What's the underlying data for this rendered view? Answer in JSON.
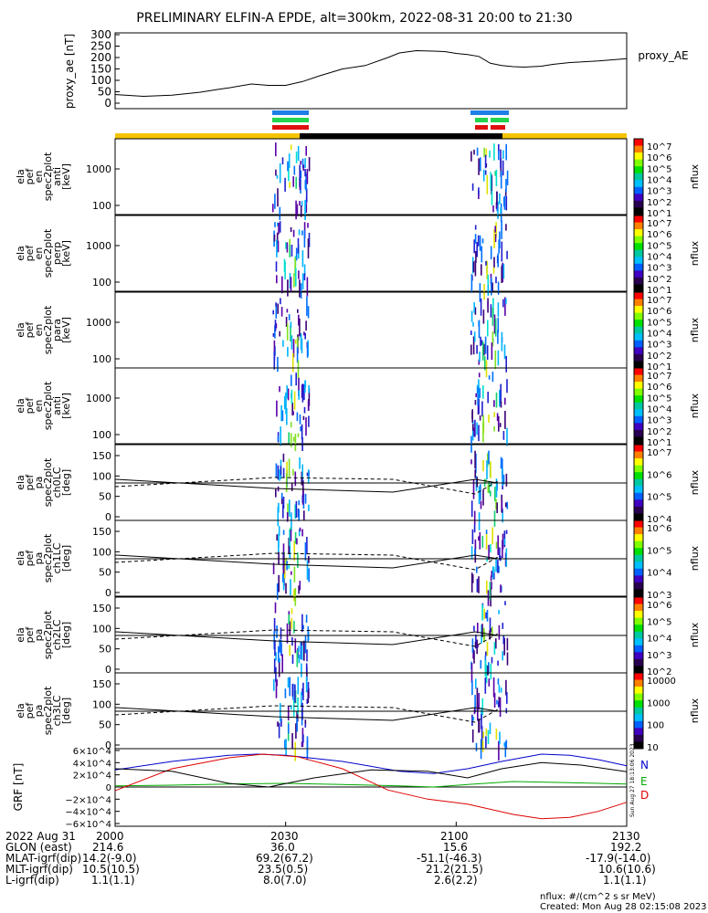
{
  "title": "PRELIMINARY ELFIN-A EPDE, alt=300km, 2022-08-31 20:00 to 21:30",
  "colors": {
    "sci_zone": "#1e7fe6",
    "sci_zone2": "#22d44e",
    "sci_zone3": "#e01010",
    "sunlight": "#f5c400",
    "eclipse": "#000000",
    "grf_n": "#0000cc",
    "grf_e": "#00aa00",
    "grf_d": "#dd0000"
  },
  "chart_data": [
    {
      "type": "line",
      "name": "proxy_ae",
      "ylabel": "proxy_ae [nT]",
      "legend": "proxy_AE",
      "ylim": [
        0,
        300
      ],
      "yticks": [
        "300",
        "250",
        "200",
        "150",
        "100",
        "50",
        "0"
      ],
      "x_minutes": [
        0,
        5,
        10,
        15,
        18,
        20,
        24,
        27,
        30,
        33,
        36,
        40,
        44,
        48,
        50,
        53,
        56,
        58,
        60,
        62,
        64,
        66,
        68,
        70,
        72,
        75,
        77,
        80,
        85,
        90
      ],
      "values": [
        38,
        30,
        35,
        48,
        60,
        67,
        84,
        78,
        78,
        95,
        120,
        150,
        165,
        200,
        220,
        230,
        228,
        226,
        218,
        213,
        205,
        175,
        165,
        160,
        158,
        162,
        170,
        178,
        185,
        195
      ]
    },
    {
      "type": "heatmap",
      "name": "ela_pef_en_spec2plot_anti",
      "ylabel": [
        "ela",
        "pef",
        "en",
        "spec2plot",
        "anti",
        "[keV]"
      ],
      "yticks": [
        "1000",
        "100"
      ],
      "colorbar": {
        "label": "nflux",
        "ticks": [
          "10^7",
          "10^6",
          "10^5",
          "10^4",
          "10^3",
          "10^2",
          "10^1"
        ]
      }
    },
    {
      "type": "heatmap",
      "name": "ela_pef_en_spec2plot_perp",
      "ylabel": [
        "ela",
        "pef",
        "en",
        "spec2plot",
        "perp",
        "[keV]"
      ],
      "yticks": [
        "1000",
        "100"
      ],
      "colorbar": {
        "label": "nflux",
        "ticks": [
          "10^7",
          "10^6",
          "10^5",
          "10^4",
          "10^3",
          "10^2",
          "10^1"
        ]
      }
    },
    {
      "type": "heatmap",
      "name": "ela_pef_en_spec2plot_para",
      "ylabel": [
        "ela",
        "pef",
        "en",
        "spec2plot",
        "para",
        "[keV]"
      ],
      "yticks": [
        "1000",
        "100"
      ],
      "colorbar": {
        "label": "nflux",
        "ticks": [
          "10^7",
          "10^6",
          "10^5",
          "10^4",
          "10^3",
          "10^2",
          "10^1"
        ]
      }
    },
    {
      "type": "heatmap",
      "name": "ela_pef_en_spec2plot_anti2",
      "ylabel": [
        "ela",
        "pef",
        "en",
        "spec2plot",
        "anti",
        "[keV]"
      ],
      "yticks": [
        "1000",
        "100"
      ],
      "colorbar": {
        "label": "nflux",
        "ticks": [
          "10^7",
          "10^6",
          "10^5",
          "10^4",
          "10^3",
          "10^2",
          "10^1"
        ]
      }
    },
    {
      "type": "heatmap",
      "name": "ela_pef_pa_spec2plot_ch0LC",
      "ylabel": [
        "ela",
        "pef",
        "pa",
        "spec2plot",
        "ch0LC",
        "[deg]"
      ],
      "yticks": [
        "150",
        "100",
        "50",
        "0"
      ],
      "colorbar": {
        "label": "nflux",
        "ticks": [
          "10^7",
          "10^6",
          "10^5",
          "10^4"
        ]
      }
    },
    {
      "type": "heatmap",
      "name": "ela_pef_pa_spec2plot_ch1LC",
      "ylabel": [
        "ela",
        "pef",
        "pa",
        "spec2plot",
        "ch1LC",
        "[deg]"
      ],
      "yticks": [
        "150",
        "100",
        "50",
        "0"
      ],
      "colorbar": {
        "label": "nflux",
        "ticks": [
          "10^6",
          "10^5",
          "10^4",
          "10^3"
        ]
      }
    },
    {
      "type": "heatmap",
      "name": "ela_pef_pa_spec2plot_ch2LC",
      "ylabel": [
        "ela",
        "pef",
        "pa",
        "spec2plot",
        "ch2LC",
        "[deg]"
      ],
      "yticks": [
        "150",
        "100",
        "50",
        "0"
      ],
      "colorbar": {
        "label": "nflux",
        "ticks": [
          "10^6",
          "10^5",
          "10^4",
          "10^3",
          "10^2"
        ]
      }
    },
    {
      "type": "heatmap",
      "name": "ela_pef_pa_spec2plot_ch3LC",
      "ylabel": [
        "ela",
        "pef",
        "pa",
        "spec2plot",
        "ch3LC",
        "[deg]"
      ],
      "yticks": [
        "150",
        "100",
        "50",
        "0"
      ],
      "colorbar": {
        "label": "nflux",
        "ticks": [
          "10000",
          "1000",
          "100",
          "10"
        ]
      }
    },
    {
      "type": "line",
      "name": "GRF",
      "ylabel": "GRF [nT]",
      "ylim": [
        -60000,
        60000
      ],
      "yticks": [
        "6×10^4",
        "4×10^4",
        "2×10^4",
        "0",
        "−2×10^4",
        "−4×10^4",
        "−6×10^4"
      ],
      "series": [
        {
          "name": "N",
          "x_minutes": [
            0,
            10,
            20,
            25,
            30,
            40,
            50,
            56,
            62,
            68,
            75,
            80,
            85,
            90
          ],
          "values": [
            28000,
            42000,
            52000,
            54000,
            52000,
            42000,
            26000,
            22000,
            30000,
            42000,
            54000,
            52000,
            45000,
            35000
          ]
        },
        {
          "name": "E",
          "x_minutes": [
            0,
            10,
            20,
            30,
            40,
            50,
            56,
            62,
            70,
            80,
            90
          ],
          "values": [
            2000,
            3000,
            5000,
            6000,
            4000,
            2000,
            0,
            4000,
            9000,
            7000,
            5000
          ]
        },
        {
          "name": "D",
          "x_minutes": [
            0,
            10,
            20,
            26,
            32,
            40,
            48,
            55,
            62,
            70,
            75,
            80,
            85,
            90
          ],
          "values": [
            -6000,
            30000,
            48000,
            54000,
            50000,
            30000,
            -5000,
            -20000,
            -28000,
            -45000,
            -52000,
            -50000,
            -40000,
            -25000
          ]
        },
        {
          "name": "black",
          "x_minutes": [
            0,
            10,
            20,
            27,
            35,
            45,
            55,
            62,
            68,
            75,
            82,
            90
          ],
          "values": [
            30000,
            26000,
            6000,
            0,
            15000,
            28000,
            26000,
            15000,
            30000,
            40000,
            36000,
            25000
          ]
        }
      ]
    }
  ],
  "grf_labels": {
    "n": "N",
    "e": "E",
    "d": "D"
  },
  "stamp": "Sun Aug 27 18:13:06 2023",
  "info": {
    "row1_label": "2022 Aug 31",
    "row1_values": [
      "2000",
      "2030",
      "2100",
      "2130"
    ],
    "row2_label": "GLON (east)",
    "row2_values": [
      "214.6",
      "36.0",
      "15.6",
      "192.2"
    ],
    "row3_label": "MLAT-igrf(dip)",
    "row3_values": [
      "14.2(-9.0)",
      "69.2(67.2)",
      "-51.1(-46.3)",
      "-17.9(-14.0)"
    ],
    "row4_label": "MLT-igrf(dip)",
    "row4_values": [
      "10.5(10.5)",
      "23.5(0.5)",
      "21.2(21.5)",
      "10.6(10.6)"
    ],
    "row5_label": "L-igrf(dip)",
    "row5_values": [
      "1.1(1.1)",
      "8.0(7.0)",
      "2.6(2.2)",
      "1.1(1.1)"
    ]
  },
  "footer": {
    "units": "nflux: #/(cm^2 s sr MeV)",
    "created": "Created: Mon Aug 28 02:15:08 2023"
  }
}
